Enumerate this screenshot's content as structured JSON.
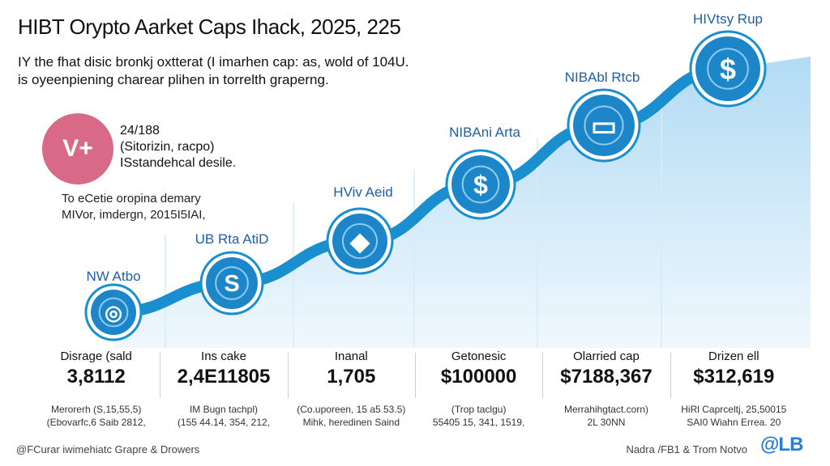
{
  "title": "HIBT Orypto Aarket Caps Ihack, 2025, 225",
  "subtitle": {
    "line1": "IY the fhat disic bronkj oxtterat (I imarhen cap: as, wold of 104U.",
    "line2": "is oyeenpiening charear plihen in torrelth graperng."
  },
  "badge": {
    "symbol": "V+",
    "lines": [
      "24/188",
      "(Sitorizin, racpo)",
      "ISstandehcal desile."
    ]
  },
  "note": {
    "lines": [
      "To eCetie oropina demary",
      "MIVor, imdergn, 2015I5IAI,"
    ]
  },
  "chart_data": {
    "type": "area",
    "stages": [
      {
        "label": "NW Atbo",
        "icon": "coin-icon",
        "stat_label": "Disrage (sald",
        "stat_value": "3,8112",
        "note": [
          "Merorerh (S,15,55,5)",
          "(Ebovarfc,6 Saib 2812,"
        ]
      },
      {
        "label": "UB Rta AtiD",
        "icon": "s-coin-icon",
        "stat_label": "Ins cake",
        "stat_value": "2,4E11805",
        "note": [
          "IM Bugn tachpl)",
          "(155 44.14, 354, 212,"
        ]
      },
      {
        "label": "HViv Aeid",
        "icon": "chevron-gem-icon",
        "stat_label": "Inanal",
        "stat_value": "1,705",
        "note": [
          "(Co.uporeen, 15 a5 53.5)",
          "Mihk, heredinen Saind"
        ]
      },
      {
        "label": "NIBAni Arta",
        "icon": "dollar-icon",
        "stat_label": "Getonesic",
        "stat_value": "$100000",
        "note": [
          "(Trop taclgu)",
          "55405 15, 341, 1519,"
        ]
      },
      {
        "label": "NIBAbl Rtcb",
        "icon": "card-icon",
        "stat_label": "Olarried cap",
        "stat_value": "$7188,367",
        "note": [
          "Merrahihgtact.corn)",
          "2L 30NN"
        ]
      },
      {
        "label": "HIVtsy Rup",
        "icon": "dollar-icon",
        "stat_label": "Drizen ell",
        "stat_value": "$312,619",
        "note": [
          "HiRl Caprceltj, 25,50015",
          "SAI0 Wiahn Errea. 20"
        ]
      }
    ],
    "colors": {
      "line": "#1a8fd0",
      "area_top": "#a9d7f3",
      "area_bottom": "#eef7fd",
      "node": "#1d86c8",
      "node_ring": "#8fcbf0"
    }
  },
  "footer": {
    "left": "@FCurar iwimehiatc Grapre & Drowers",
    "right": "Nadra /FB1 & Trom Notvo",
    "logo": "@LB"
  }
}
